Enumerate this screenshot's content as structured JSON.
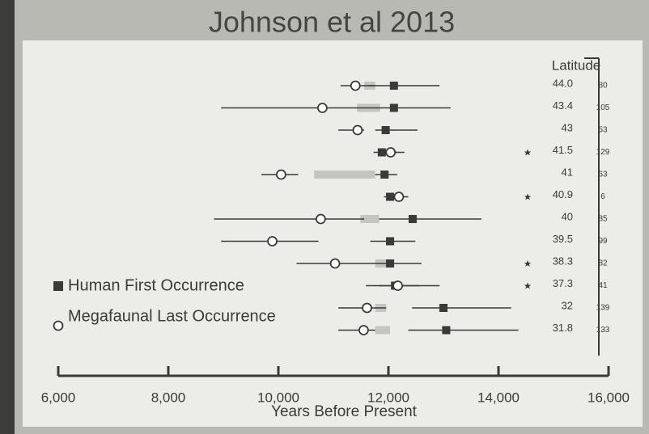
{
  "chart_data": {
    "type": "forest",
    "title": "Johnson et al 2013",
    "xlabel": "Years Before Present",
    "latitude_header": "Latitude",
    "xlim": [
      6000,
      16000
    ],
    "xticks": [
      {
        "value": 6000,
        "label": "6,000"
      },
      {
        "value": 8000,
        "label": "8,000"
      },
      {
        "value": 10000,
        "label": "10,000"
      },
      {
        "value": 12000,
        "label": "12,000"
      },
      {
        "value": 14000,
        "label": "14,000"
      },
      {
        "value": 16000,
        "label": "16,000"
      }
    ],
    "legend": [
      "Human First Occurrence",
      "Megafaunal Last Occurrence"
    ],
    "color": "#3a3a38",
    "gray_color": "#c4c4c0",
    "rows": [
      {
        "latitude": "44.0",
        "n": 80,
        "human": {
          "value": 12100,
          "low": 11630,
          "high": 12930
        },
        "mega": {
          "value": 11400,
          "low": 11130,
          "high": 11760
        },
        "gray": [
          11560,
          11760
        ],
        "star": false
      },
      {
        "latitude": "43.4",
        "n": 105,
        "human": {
          "value": 12100,
          "low": 8960,
          "high": 13130
        },
        "mega": {
          "value": 10800,
          "low": 10800,
          "high": 10800
        },
        "gray": [
          11430,
          11850
        ],
        "star": false
      },
      {
        "latitude": "43",
        "n": 53,
        "human": {
          "value": 11950,
          "low": 11760,
          "high": 12530
        },
        "mega": {
          "value": 11440,
          "low": 11090,
          "high": 11560
        },
        "gray": null,
        "star": false
      },
      {
        "latitude": "41.5",
        "n": 129,
        "human": {
          "value": 11880,
          "low": 11730,
          "high": 12290
        },
        "mega": {
          "value": 12040,
          "low": 11870,
          "high": 12160
        },
        "gray": null,
        "star": true
      },
      {
        "latitude": "41",
        "n": 63,
        "human": {
          "value": 11930,
          "low": 11760,
          "high": 12160
        },
        "mega": {
          "value": 10050,
          "low": 9690,
          "high": 10360
        },
        "gray": [
          10650,
          11760
        ],
        "star": false
      },
      {
        "latitude": "40.9",
        "n": 6,
        "human": {
          "value": 12030,
          "low": 11920,
          "high": 12090
        },
        "mega": {
          "value": 12190,
          "low": 12070,
          "high": 12360
        },
        "gray": null,
        "star": true
      },
      {
        "latitude": "40",
        "n": 85,
        "human": {
          "value": 12440,
          "low": 11830,
          "high": 13690
        },
        "mega": {
          "value": 10770,
          "low": 8830,
          "high": 11560
        },
        "gray": [
          11490,
          11830
        ],
        "star": false
      },
      {
        "latitude": "39.5",
        "n": 99,
        "human": {
          "value": 12030,
          "low": 11670,
          "high": 12490
        },
        "mega": {
          "value": 9890,
          "low": 8960,
          "high": 10730
        },
        "gray": null,
        "star": false
      },
      {
        "latitude": "38.3",
        "n": 82,
        "human": {
          "value": 12030,
          "low": 11690,
          "high": 12600
        },
        "mega": {
          "value": 11030,
          "low": 10330,
          "high": 11690
        },
        "gray": [
          11760,
          11960
        ],
        "star": true
      },
      {
        "latitude": "37.3",
        "n": 41,
        "human": {
          "value": 12120,
          "low": 11590,
          "high": 12930
        },
        "mega": {
          "value": 12170,
          "low": 11830,
          "high": 12560
        },
        "gray": null,
        "star": true
      },
      {
        "latitude": "32",
        "n": 139,
        "human": {
          "value": 13000,
          "low": 12430,
          "high": 14230
        },
        "mega": {
          "value": 11610,
          "low": 11090,
          "high": 11960
        },
        "gray": [
          11760,
          11960
        ],
        "star": false
      },
      {
        "latitude": "31.8",
        "n": 133,
        "human": {
          "value": 13050,
          "low": 12360,
          "high": 14360
        },
        "mega": {
          "value": 11550,
          "low": 11090,
          "high": 11760
        },
        "gray": [
          11760,
          12030
        ],
        "star": false
      }
    ]
  }
}
